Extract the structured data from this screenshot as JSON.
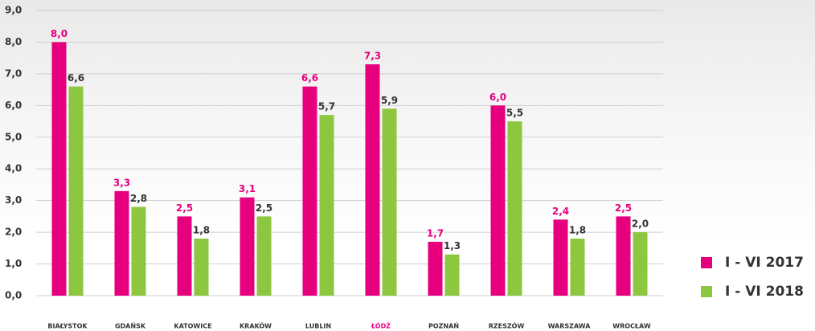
{
  "chart_data": {
    "type": "bar",
    "categories": [
      "BIAŁYSTOK",
      "GDAŃSK",
      "KATOWICE",
      "KRAKÓW",
      "LUBLIN",
      "ŁÓDŹ",
      "POZNAŃ",
      "RZESZÓW",
      "WARSZAWA",
      "WROCŁAW"
    ],
    "category_label_colors": [
      "#333333",
      "#333333",
      "#333333",
      "#333333",
      "#333333",
      "#e6007e",
      "#333333",
      "#333333",
      "#333333",
      "#333333"
    ],
    "series": [
      {
        "name": "I - VI 2017",
        "color": "#e6007e",
        "label_color": "#e6007e",
        "values": [
          8.0,
          3.3,
          2.5,
          3.1,
          6.6,
          7.3,
          1.7,
          6.0,
          2.4,
          2.5
        ],
        "value_labels": [
          "8,0",
          "3,3",
          "2,5",
          "3,1",
          "6,6",
          "7,3",
          "1,7",
          "6,0",
          "2,4",
          "2,5"
        ]
      },
      {
        "name": "I - VI 2018",
        "color": "#8dc63f",
        "label_color": "#333333",
        "values": [
          6.6,
          2.8,
          1.8,
          2.5,
          5.7,
          5.9,
          1.3,
          5.5,
          1.8,
          2.0
        ],
        "value_labels": [
          "6,6",
          "2,8",
          "1,8",
          "2,5",
          "5,7",
          "5,9",
          "1,3",
          "5,5",
          "1,8",
          "2,0"
        ]
      }
    ],
    "ylim": [
      0,
      9
    ],
    "yticks": [
      {
        "value": 0,
        "label": "0,0"
      },
      {
        "value": 1,
        "label": "1,0"
      },
      {
        "value": 2,
        "label": "2,0"
      },
      {
        "value": 3,
        "label": "3,0"
      },
      {
        "value": 4,
        "label": "4,0"
      },
      {
        "value": 5,
        "label": "5,0"
      },
      {
        "value": 6,
        "label": "6,0"
      },
      {
        "value": 7,
        "label": "7,0"
      },
      {
        "value": 8,
        "label": "8,0"
      },
      {
        "value": 9,
        "label": "9,0"
      }
    ],
    "grid": true,
    "legend": "bottom-right"
  }
}
